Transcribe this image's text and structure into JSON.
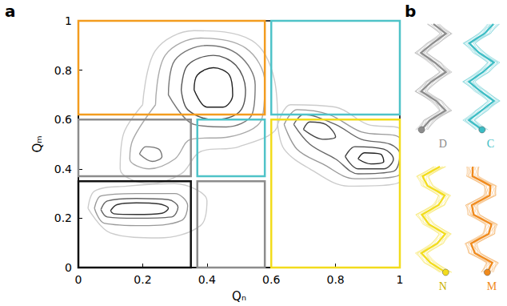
{
  "chart_data": {
    "type": "contour",
    "panel_label": "a",
    "xlabel": "Qₙ",
    "ylabel": "Qₘ",
    "xlim": [
      0,
      1
    ],
    "ylim": [
      0,
      1
    ],
    "xticks": [
      0,
      0.2,
      0.4,
      0.6,
      0.8,
      1
    ],
    "yticks": [
      0,
      0.2,
      0.4,
      0.6,
      0.8,
      1
    ],
    "grid": false,
    "regions": [
      {
        "x": [
          0,
          0.35
        ],
        "y": [
          0,
          0.35
        ],
        "color": "#111111"
      },
      {
        "x": [
          0.37,
          0.58
        ],
        "y": [
          0,
          0.35
        ],
        "color": "#8c8c8c"
      },
      {
        "x": [
          0,
          0.35
        ],
        "y": [
          0.37,
          0.6
        ],
        "color": "#8c8c8c"
      },
      {
        "x": [
          0.37,
          0.58
        ],
        "y": [
          0.37,
          0.6
        ],
        "color": "#4fc3c8"
      },
      {
        "x": [
          0,
          0.58
        ],
        "y": [
          0.62,
          1
        ],
        "color": "#f39c1f"
      },
      {
        "x": [
          0.6,
          1
        ],
        "y": [
          0.62,
          1
        ],
        "color": "#4fc3c8"
      },
      {
        "x": [
          0.6,
          1
        ],
        "y": [
          0,
          0.6
        ],
        "color": "#f2dc1c"
      }
    ],
    "contours": [
      {
        "color": "#cccccc",
        "values": [
          [
            0.03,
            0.24
          ],
          [
            0.05,
            0.31
          ],
          [
            0.15,
            0.33
          ],
          [
            0.3,
            0.34
          ],
          [
            0.4,
            0.27
          ],
          [
            0.38,
            0.17
          ],
          [
            0.25,
            0.12
          ],
          [
            0.1,
            0.14
          ],
          [
            0.03,
            0.24
          ]
        ]
      },
      {
        "color": "#999999",
        "values": [
          [
            0.05,
            0.24
          ],
          [
            0.07,
            0.29
          ],
          [
            0.18,
            0.3
          ],
          [
            0.3,
            0.3
          ],
          [
            0.34,
            0.25
          ],
          [
            0.32,
            0.19
          ],
          [
            0.2,
            0.17
          ],
          [
            0.08,
            0.18
          ],
          [
            0.05,
            0.24
          ]
        ]
      },
      {
        "color": "#666666",
        "values": [
          [
            0.07,
            0.235
          ],
          [
            0.09,
            0.27
          ],
          [
            0.18,
            0.28
          ],
          [
            0.28,
            0.275
          ],
          [
            0.31,
            0.245
          ],
          [
            0.29,
            0.205
          ],
          [
            0.18,
            0.2
          ],
          [
            0.09,
            0.205
          ],
          [
            0.07,
            0.235
          ]
        ]
      },
      {
        "color": "#333333",
        "values": [
          [
            0.1,
            0.23
          ],
          [
            0.12,
            0.255
          ],
          [
            0.18,
            0.262
          ],
          [
            0.25,
            0.258
          ],
          [
            0.28,
            0.24
          ],
          [
            0.26,
            0.22
          ],
          [
            0.18,
            0.215
          ],
          [
            0.11,
            0.218
          ],
          [
            0.1,
            0.23
          ]
        ]
      },
      {
        "color": "#cccccc",
        "values": [
          [
            0.2,
            0.66
          ],
          [
            0.24,
            0.88
          ],
          [
            0.36,
            0.96
          ],
          [
            0.54,
            0.92
          ],
          [
            0.61,
            0.76
          ],
          [
            0.62,
            0.58
          ],
          [
            0.5,
            0.49
          ],
          [
            0.38,
            0.47
          ],
          [
            0.32,
            0.38
          ],
          [
            0.22,
            0.34
          ],
          [
            0.13,
            0.4
          ],
          [
            0.14,
            0.54
          ],
          [
            0.2,
            0.66
          ]
        ]
      },
      {
        "color": "#aaaaaa",
        "values": [
          [
            0.24,
            0.66
          ],
          [
            0.27,
            0.86
          ],
          [
            0.38,
            0.93
          ],
          [
            0.52,
            0.89
          ],
          [
            0.58,
            0.75
          ],
          [
            0.57,
            0.6
          ],
          [
            0.47,
            0.53
          ],
          [
            0.35,
            0.52
          ],
          [
            0.3,
            0.44
          ],
          [
            0.22,
            0.4
          ],
          [
            0.16,
            0.44
          ],
          [
            0.17,
            0.52
          ],
          [
            0.24,
            0.66
          ]
        ]
      },
      {
        "color": "#777777",
        "values": [
          [
            0.28,
            0.7
          ],
          [
            0.3,
            0.84
          ],
          [
            0.4,
            0.9
          ],
          [
            0.5,
            0.86
          ],
          [
            0.55,
            0.74
          ],
          [
            0.54,
            0.62
          ],
          [
            0.46,
            0.57
          ],
          [
            0.36,
            0.58
          ],
          [
            0.28,
            0.7
          ]
        ]
      },
      {
        "color": "#555555",
        "values": [
          [
            0.32,
            0.72
          ],
          [
            0.34,
            0.82
          ],
          [
            0.42,
            0.86
          ],
          [
            0.49,
            0.82
          ],
          [
            0.52,
            0.72
          ],
          [
            0.5,
            0.63
          ],
          [
            0.42,
            0.6
          ],
          [
            0.34,
            0.64
          ],
          [
            0.32,
            0.72
          ]
        ]
      },
      {
        "color": "#222222",
        "values": [
          [
            0.36,
            0.72
          ],
          [
            0.37,
            0.78
          ],
          [
            0.42,
            0.81
          ],
          [
            0.47,
            0.78
          ],
          [
            0.48,
            0.7
          ],
          [
            0.45,
            0.65
          ],
          [
            0.4,
            0.65
          ],
          [
            0.36,
            0.72
          ]
        ]
      },
      {
        "color": "#777777",
        "values": [
          [
            0.19,
            0.46
          ],
          [
            0.21,
            0.49
          ],
          [
            0.25,
            0.48
          ],
          [
            0.26,
            0.45
          ],
          [
            0.23,
            0.43
          ],
          [
            0.19,
            0.46
          ]
        ]
      },
      {
        "color": "#cccccc",
        "values": [
          [
            0.62,
            0.58
          ],
          [
            0.66,
            0.66
          ],
          [
            0.8,
            0.65
          ],
          [
            0.9,
            0.58
          ],
          [
            1,
            0.56
          ],
          [
            1,
            0.35
          ],
          [
            0.84,
            0.33
          ],
          [
            0.72,
            0.4
          ],
          [
            0.64,
            0.48
          ],
          [
            0.62,
            0.58
          ]
        ]
      },
      {
        "color": "#999999",
        "values": [
          [
            0.64,
            0.58
          ],
          [
            0.68,
            0.64
          ],
          [
            0.78,
            0.62
          ],
          [
            0.88,
            0.55
          ],
          [
            1,
            0.52
          ],
          [
            1,
            0.38
          ],
          [
            0.86,
            0.36
          ],
          [
            0.76,
            0.42
          ],
          [
            0.68,
            0.48
          ],
          [
            0.64,
            0.58
          ]
        ]
      },
      {
        "color": "#666666",
        "values": [
          [
            0.67,
            0.58
          ],
          [
            0.7,
            0.62
          ],
          [
            0.8,
            0.58
          ],
          [
            0.88,
            0.52
          ],
          [
            0.97,
            0.5
          ],
          [
            1,
            0.46
          ],
          [
            0.98,
            0.39
          ],
          [
            0.87,
            0.38
          ],
          [
            0.8,
            0.44
          ],
          [
            0.72,
            0.5
          ],
          [
            0.67,
            0.58
          ]
        ]
      },
      {
        "color": "#444444",
        "values": [
          [
            0.83,
            0.45
          ],
          [
            0.86,
            0.49
          ],
          [
            0.95,
            0.48
          ],
          [
            0.98,
            0.44
          ],
          [
            0.95,
            0.4
          ],
          [
            0.87,
            0.4
          ],
          [
            0.83,
            0.45
          ]
        ]
      },
      {
        "color": "#444444",
        "values": [
          [
            0.7,
            0.56
          ],
          [
            0.72,
            0.59
          ],
          [
            0.77,
            0.58
          ],
          [
            0.8,
            0.53
          ],
          [
            0.76,
            0.52
          ],
          [
            0.7,
            0.56
          ]
        ]
      },
      {
        "color": "#222222",
        "values": [
          [
            0.87,
            0.44
          ],
          [
            0.89,
            0.465
          ],
          [
            0.94,
            0.46
          ],
          [
            0.95,
            0.43
          ],
          [
            0.91,
            0.42
          ],
          [
            0.87,
            0.44
          ]
        ]
      }
    ]
  },
  "panel_b": {
    "label": "b",
    "structures": [
      {
        "label": "D",
        "color": "#8c8c8c"
      },
      {
        "label": "C",
        "color": "#3bbcc4"
      },
      {
        "label": "N",
        "color": "#f2dc1c"
      },
      {
        "label": "M",
        "color": "#f08a1c"
      }
    ]
  }
}
